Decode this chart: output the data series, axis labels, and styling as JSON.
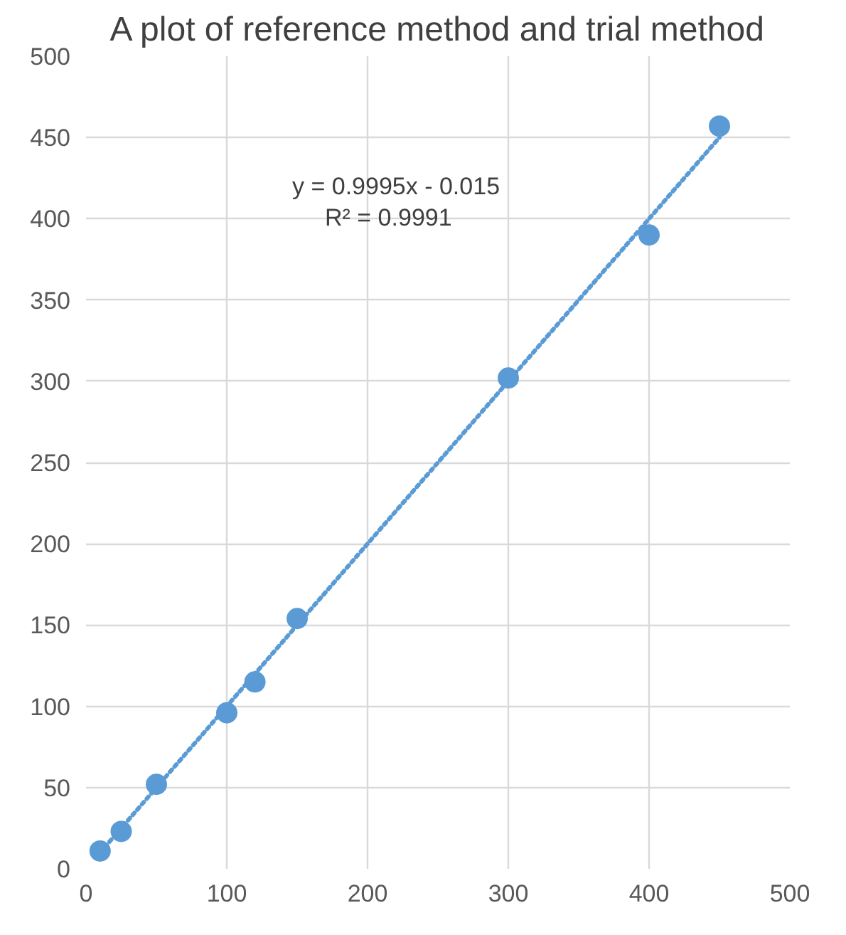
{
  "chart_data": {
    "type": "scatter",
    "title": "A plot of reference method and trial method",
    "x": [
      10,
      25,
      50,
      100,
      120,
      150,
      300,
      400,
      450
    ],
    "series": [
      {
        "color": "#5b9bd5",
        "values": [
          11,
          23,
          52,
          96,
          115,
          154,
          302,
          390,
          457
        ]
      },
      {
        "type": "line",
        "color": "#5b9bd5",
        "x": [
          10,
          450
        ],
        "values": [
          10,
          450
        ],
        "line_style": "dotted",
        "marker": "none"
      }
    ],
    "annotations": [
      "y = 0.9995x - 0.015",
      "R² = 0.9991"
    ],
    "xlim": [
      0,
      500
    ],
    "xticks": [
      0,
      100,
      200,
      300,
      400,
      500
    ],
    "ylim": [
      0,
      500
    ],
    "yticks": [
      0,
      50,
      100,
      150,
      200,
      250,
      300,
      350,
      400,
      450,
      500
    ],
    "grid": true,
    "marker": "circle"
  }
}
